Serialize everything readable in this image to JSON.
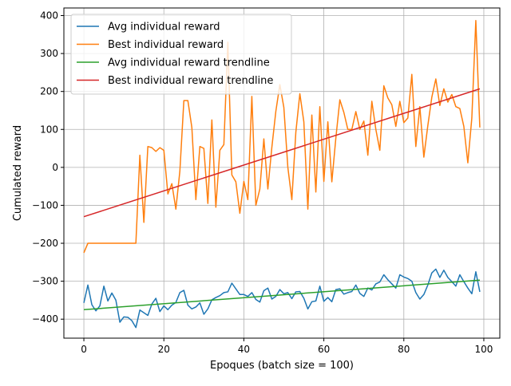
{
  "chart_data": {
    "type": "line",
    "title": "",
    "xlabel": "Epoques (batch size = 100)",
    "ylabel": "Cumulated reward",
    "xlim": [
      -5,
      104
    ],
    "ylim": [
      -450,
      420
    ],
    "xticks": [
      0,
      20,
      40,
      60,
      80,
      100
    ],
    "yticks": [
      -400,
      -300,
      -200,
      -100,
      0,
      100,
      200,
      300,
      400
    ],
    "grid": true,
    "legend_position": "upper-left",
    "series": [
      {
        "name": "Avg individual reward",
        "color": "#1f77b4",
        "x": [
          0,
          1,
          2,
          3,
          4,
          5,
          6,
          7,
          8,
          9,
          10,
          11,
          12,
          13,
          14,
          15,
          16,
          17,
          18,
          19,
          20,
          21,
          22,
          23,
          24,
          25,
          26,
          27,
          28,
          29,
          30,
          31,
          32,
          33,
          34,
          35,
          36,
          37,
          38,
          39,
          40,
          41,
          42,
          43,
          44,
          45,
          46,
          47,
          48,
          49,
          50,
          51,
          52,
          53,
          54,
          55,
          56,
          57,
          58,
          59,
          60,
          61,
          62,
          63,
          64,
          65,
          66,
          67,
          68,
          69,
          70,
          71,
          72,
          73,
          74,
          75,
          76,
          77,
          78,
          79,
          80,
          81,
          82,
          83,
          84,
          85,
          86,
          87,
          88,
          89,
          90,
          91,
          92,
          93,
          94,
          95,
          96,
          97,
          98,
          99
        ],
        "values": [
          -357,
          -310,
          -362,
          -378,
          -365,
          -313,
          -352,
          -331,
          -350,
          -408,
          -394,
          -395,
          -404,
          -422,
          -376,
          -383,
          -390,
          -360,
          -345,
          -380,
          -365,
          -375,
          -363,
          -356,
          -330,
          -324,
          -363,
          -373,
          -368,
          -357,
          -387,
          -373,
          -349,
          -343,
          -338,
          -330,
          -328,
          -305,
          -320,
          -335,
          -335,
          -340,
          -330,
          -348,
          -355,
          -325,
          -318,
          -347,
          -340,
          -322,
          -333,
          -330,
          -346,
          -328,
          -327,
          -345,
          -373,
          -354,
          -352,
          -313,
          -353,
          -343,
          -354,
          -322,
          -320,
          -334,
          -330,
          -327,
          -310,
          -332,
          -340,
          -318,
          -323,
          -307,
          -302,
          -283,
          -296,
          -307,
          -318,
          -283,
          -289,
          -293,
          -300,
          -330,
          -347,
          -335,
          -310,
          -278,
          -268,
          -290,
          -271,
          -290,
          -301,
          -313,
          -283,
          -301,
          -318,
          -333,
          -275,
          -328
        ]
      },
      {
        "name": "Best individual reward",
        "color": "#ff7f0e",
        "x": [
          0,
          1,
          2,
          3,
          4,
          5,
          6,
          7,
          8,
          9,
          10,
          11,
          12,
          13,
          14,
          15,
          16,
          17,
          18,
          19,
          20,
          21,
          22,
          23,
          24,
          25,
          26,
          27,
          28,
          29,
          30,
          31,
          32,
          33,
          34,
          35,
          36,
          37,
          38,
          39,
          40,
          41,
          42,
          43,
          44,
          45,
          46,
          47,
          48,
          49,
          50,
          51,
          52,
          53,
          54,
          55,
          56,
          57,
          58,
          59,
          60,
          61,
          62,
          63,
          64,
          65,
          66,
          67,
          68,
          69,
          70,
          71,
          72,
          73,
          74,
          75,
          76,
          77,
          78,
          79,
          80,
          81,
          82,
          83,
          84,
          85,
          86,
          87,
          88,
          89,
          90,
          91,
          92,
          93,
          94,
          95,
          96,
          97,
          98,
          99
        ],
        "values": [
          -225,
          -200,
          -200,
          -200,
          -200,
          -200,
          -200,
          -200,
          -200,
          -200,
          -200,
          -200,
          -200,
          -200,
          32,
          -145,
          55,
          52,
          42,
          52,
          45,
          -70,
          -43,
          -110,
          -10,
          176,
          176,
          105,
          -85,
          55,
          50,
          -95,
          125,
          -105,
          45,
          60,
          330,
          -20,
          -38,
          -121,
          -37,
          -85,
          187,
          -100,
          -57,
          75,
          -57,
          53,
          148,
          218,
          158,
          0,
          -85,
          93,
          194,
          120,
          -110,
          138,
          -65,
          160,
          -37,
          120,
          -38,
          77,
          178,
          145,
          100,
          100,
          147,
          100,
          122,
          32,
          174,
          100,
          45,
          215,
          183,
          165,
          108,
          174,
          118,
          130,
          245,
          55,
          160,
          27,
          110,
          185,
          233,
          163,
          207,
          172,
          192,
          160,
          155,
          108,
          12,
          130,
          387,
          105
        ]
      },
      {
        "name": "Avg individual reward trendline",
        "color": "#2ca02c",
        "x": [
          0,
          99
        ],
        "values": [
          -375,
          -297
        ]
      },
      {
        "name": "Best individual reward trendline",
        "color": "#d62728",
        "x": [
          0,
          99
        ],
        "values": [
          -130,
          207
        ]
      }
    ]
  }
}
